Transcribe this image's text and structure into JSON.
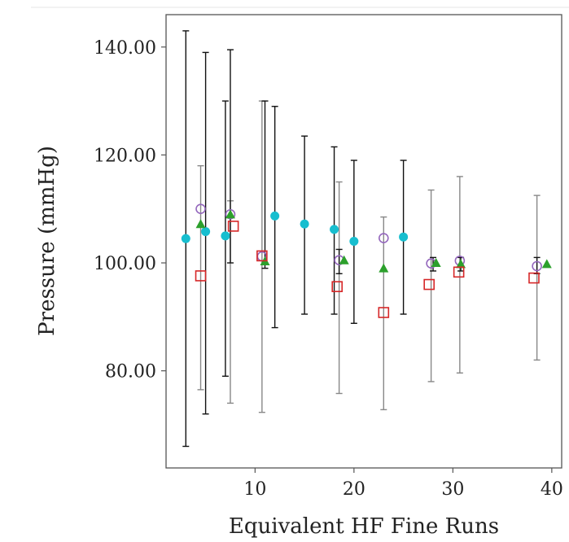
{
  "chart_data": {
    "type": "scatter",
    "title": "",
    "xlabel": "Equivalent HF Fine Runs",
    "ylabel": "Pressure (mmHg)",
    "xlim": [
      1,
      41
    ],
    "ylim": [
      62,
      146
    ],
    "xticks": [
      10,
      20,
      30,
      40
    ],
    "yticks": [
      80,
      100,
      120,
      140
    ],
    "xtick_labels": [
      "10",
      "20",
      "30",
      "40"
    ],
    "ytick_labels": [
      "80.00",
      "100.00",
      "120.00",
      "140.00"
    ],
    "grid": false,
    "legend": null,
    "series": [
      {
        "marker": "circle",
        "color": "#17becf",
        "x": [
          3,
          5,
          7,
          12,
          15,
          18,
          20,
          25
        ],
        "y": [
          104.5,
          105.8,
          105.0,
          108.7,
          107.2,
          106.2,
          104.0,
          104.8
        ]
      },
      {
        "marker": "circle-open",
        "color": "#9467bd",
        "x": [
          4.5,
          7.5,
          10.7,
          18.5,
          23,
          27.8,
          30.7,
          38.5
        ],
        "y": [
          110.0,
          109.0,
          101.2,
          100.5,
          104.6,
          99.9,
          100.4,
          99.4
        ],
        "errors": [
          {
            "low": 76.5,
            "high": 118.0
          },
          {
            "low": 74.0,
            "high": 111.5
          },
          {
            "low": 72.3,
            "high": 130.0
          },
          {
            "low": 75.8,
            "high": 115.0
          },
          {
            "low": 72.8,
            "high": 108.5
          },
          {
            "low": 78.0,
            "high": 113.5
          },
          {
            "low": 79.6,
            "high": 116.0
          },
          {
            "low": 82.0,
            "high": 112.5
          }
        ]
      },
      {
        "marker": "triangle",
        "color": "#2ca02c",
        "x": [
          4.5,
          7.5,
          11,
          19,
          23,
          28.3,
          30.8,
          39.5
        ],
        "y": [
          107.2,
          109.0,
          100.3,
          100.5,
          99.0,
          100.0,
          99.8,
          99.8
        ]
      },
      {
        "marker": "square-open",
        "color": "#d62728",
        "x": [
          4.5,
          7.8,
          10.7,
          18.3,
          23,
          27.6,
          30.6,
          38.2
        ],
        "y": [
          97.6,
          106.8,
          101.3,
          95.6,
          90.8,
          96.0,
          98.3,
          97.2
        ]
      }
    ],
    "errorbars_black": [
      {
        "x": 3,
        "low": 66.0,
        "high": 143.0
      },
      {
        "x": 5,
        "low": 72.0,
        "high": 139.0
      },
      {
        "x": 7,
        "low": 79.0,
        "high": 130.0
      },
      {
        "x": 7.5,
        "low": 100.0,
        "high": 139.5
      },
      {
        "x": 11,
        "low": 99.0,
        "high": 130.0
      },
      {
        "x": 12,
        "low": 88.0,
        "high": 129.0
      },
      {
        "x": 15,
        "low": 90.5,
        "high": 123.5
      },
      {
        "x": 18,
        "low": 90.5,
        "high": 121.5
      },
      {
        "x": 18.5,
        "low": 98.0,
        "high": 102.5
      },
      {
        "x": 20,
        "low": 88.8,
        "high": 119.0
      },
      {
        "x": 25,
        "low": 90.5,
        "high": 119.0
      },
      {
        "x": 28,
        "low": 98.5,
        "high": 101.0
      },
      {
        "x": 30.8,
        "low": 98.5,
        "high": 101.0
      },
      {
        "x": 38.5,
        "low": 98.0,
        "high": 101.0
      }
    ]
  }
}
